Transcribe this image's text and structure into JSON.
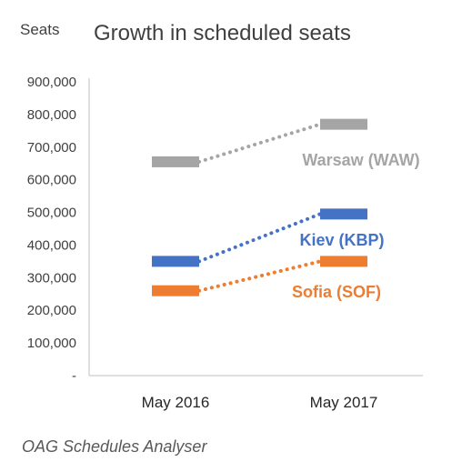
{
  "chart_data": {
    "type": "line",
    "title": "Growth in scheduled seats",
    "ylabel": "Seats",
    "xlabel": "",
    "categories": [
      "May 2016",
      "May 2017"
    ],
    "ylim": [
      0,
      900000
    ],
    "yticks": [
      "-",
      "100,000",
      "200,000",
      "300,000",
      "400,000",
      "500,000",
      "600,000",
      "700,000",
      "800,000",
      "900,000"
    ],
    "ytick_values": [
      0,
      100000,
      200000,
      300000,
      400000,
      500000,
      600000,
      700000,
      800000,
      900000
    ],
    "grid": false,
    "marker": "horizontal-bar",
    "line_style": "dotted",
    "series": [
      {
        "name": "Warsaw (WAW)",
        "values": [
          655000,
          770000
        ],
        "color": "#A5A5A5"
      },
      {
        "name": "Kiev (KBP)",
        "values": [
          350000,
          495000
        ],
        "color": "#4472C4"
      },
      {
        "name": "Sofia (SOF)",
        "values": [
          260000,
          350000
        ],
        "color": "#ED7D31"
      }
    ],
    "source": "OAG Schedules Analyser"
  }
}
